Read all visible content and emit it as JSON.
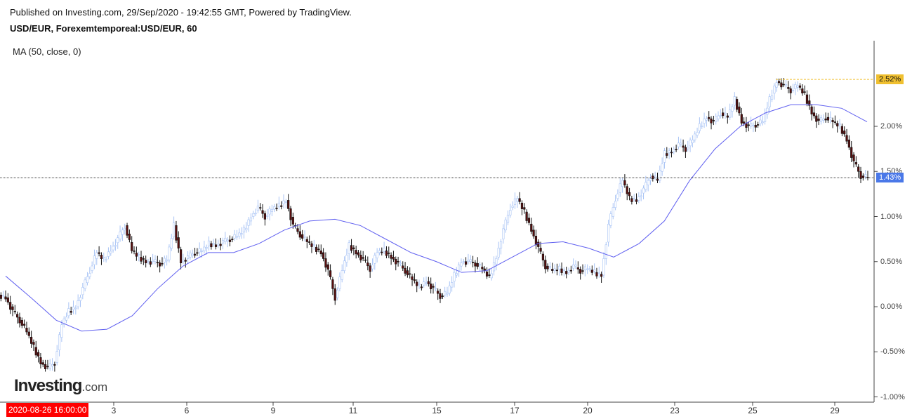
{
  "header": {
    "published": "Published on Investing.com, 29/Sep/2020 - 19:42:55 GMT, Powered by TradingView.",
    "symbol": "USD/EUR, Forexemtemporeal:USD/EUR, 60"
  },
  "indicator_label": "MA (50, close, 0)",
  "logo": {
    "main": "Investing",
    "suffix": ".com"
  },
  "chart_data": {
    "type": "candlestick",
    "title": "USD/EUR, Forexemtemporeal:USD/EUR, 60",
    "start_label": "2020-08-26 16:00:00",
    "x_ticks": [
      "3",
      "6",
      "9",
      "11",
      "15",
      "17",
      "20",
      "23",
      "25",
      "29"
    ],
    "y_ticks": [
      "2.00%",
      "1.50%",
      "1.00%",
      "0.50%",
      "0.00%",
      "-0.50%",
      "-1.00%"
    ],
    "ylim": [
      -1.0,
      2.9
    ],
    "high_marker": {
      "value": 2.52,
      "label": "2.52%",
      "color": "#f0c030"
    },
    "last_marker": {
      "value": 1.43,
      "label": "1.43%",
      "color": "#4a78e8"
    },
    "closes": [
      0.1,
      -0.05,
      -0.15,
      -0.28,
      -0.45,
      -0.62,
      -0.68,
      -0.62,
      -0.2,
      -0.05,
      0.0,
      0.2,
      0.4,
      0.6,
      0.52,
      0.63,
      0.75,
      0.9,
      0.62,
      0.55,
      0.5,
      0.5,
      0.48,
      0.52,
      0.9,
      0.5,
      0.55,
      0.6,
      0.62,
      0.7,
      0.68,
      0.72,
      0.75,
      0.78,
      0.85,
      1.0,
      1.1,
      1.0,
      1.08,
      1.12,
      1.18,
      0.9,
      0.8,
      0.72,
      0.66,
      0.6,
      0.4,
      0.1,
      0.4,
      0.68,
      0.6,
      0.52,
      0.42,
      0.6,
      0.62,
      0.55,
      0.48,
      0.4,
      0.3,
      0.22,
      0.28,
      0.2,
      0.12,
      0.15,
      0.35,
      0.5,
      0.5,
      0.48,
      0.42,
      0.32,
      0.55,
      0.85,
      1.1,
      1.2,
      1.05,
      0.85,
      0.65,
      0.45,
      0.4,
      0.42,
      0.38,
      0.45,
      0.4,
      0.42,
      0.38,
      0.35,
      0.9,
      1.2,
      1.4,
      1.2,
      1.18,
      1.3,
      1.45,
      1.4,
      1.7,
      1.72,
      1.8,
      1.75,
      1.85,
      2.0,
      2.1,
      2.05,
      2.15,
      2.1,
      2.3,
      2.05,
      2.0,
      2.02,
      2.05,
      2.3,
      2.5,
      2.45,
      2.4,
      2.45,
      2.35,
      2.15,
      2.05,
      2.1,
      2.05,
      2.0,
      1.85,
      1.6,
      1.45,
      1.43
    ],
    "ma50": [
      0.34,
      0.1,
      -0.15,
      -0.27,
      -0.25,
      -0.1,
      0.2,
      0.45,
      0.6,
      0.6,
      0.7,
      0.85,
      0.95,
      0.97,
      0.9,
      0.75,
      0.6,
      0.5,
      0.38,
      0.4,
      0.55,
      0.7,
      0.72,
      0.65,
      0.55,
      0.7,
      0.95,
      1.4,
      1.75,
      2.0,
      2.15,
      2.24,
      2.24,
      2.2,
      2.05
    ],
    "colors": {
      "up": "#a9c4f5",
      "down": "#5a0f0f",
      "ma": "#6060f0"
    }
  }
}
